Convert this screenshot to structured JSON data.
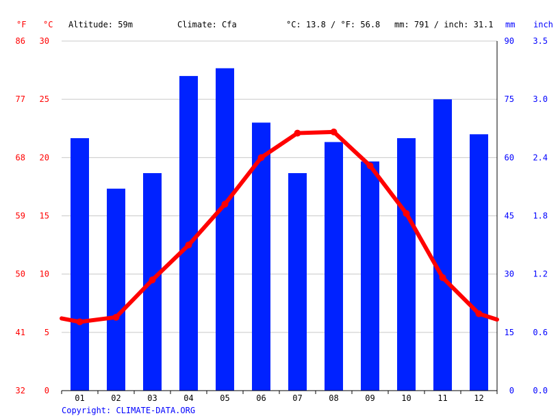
{
  "header": {
    "unit_f": "°F",
    "unit_c": "°C",
    "altitude": "Altitude: 59m",
    "climate": "Climate: Cfa",
    "temp_avg": "°C: 13.8 / °F: 56.8",
    "precip_total": "mm: 791 / inch: 31.1",
    "unit_mm": "mm",
    "unit_inch": "inch"
  },
  "footer": {
    "copyright": "Copyright: CLIMATE-DATA.ORG"
  },
  "colors": {
    "temperature": "#ff0000",
    "precipitation": "#0022ff",
    "grid": "#c8c8c8",
    "axis_text_red": "#ff0000",
    "axis_text_blue": "#0000ff"
  },
  "chart_data": {
    "type": "bar",
    "categories": [
      "01",
      "02",
      "03",
      "04",
      "05",
      "06",
      "07",
      "08",
      "09",
      "10",
      "11",
      "12"
    ],
    "series": [
      {
        "name": "Precipitation",
        "unit": "mm",
        "chart_type": "bar",
        "axis": "right",
        "values": [
          65,
          52,
          56,
          81,
          83,
          69,
          56,
          64,
          59,
          65,
          75,
          66
        ]
      },
      {
        "name": "Temperature",
        "unit": "°C",
        "chart_type": "line",
        "axis": "left",
        "values": [
          5.9,
          6.3,
          9.5,
          12.5,
          16.0,
          20.0,
          22.1,
          22.2,
          19.3,
          15.2,
          9.7,
          6.6
        ],
        "edge_values": [
          6.2,
          6.1
        ]
      }
    ],
    "y_left_celsius": {
      "ticks": [
        0,
        5,
        10,
        15,
        20,
        25,
        30
      ],
      "ylim": [
        0,
        30
      ]
    },
    "y_left_fahrenheit": {
      "ticks": [
        "32",
        "41",
        "50",
        "59",
        "68",
        "77",
        "86"
      ]
    },
    "y_right_mm": {
      "ticks": [
        0,
        15,
        30,
        45,
        60,
        75,
        90
      ],
      "ylim": [
        0,
        90
      ]
    },
    "y_right_inch": {
      "ticks": [
        "0.0",
        "0.6",
        "1.2",
        "1.8",
        "2.4",
        "3.0",
        "3.5"
      ]
    },
    "grid": true,
    "xlabel": "",
    "ylabel": ""
  }
}
